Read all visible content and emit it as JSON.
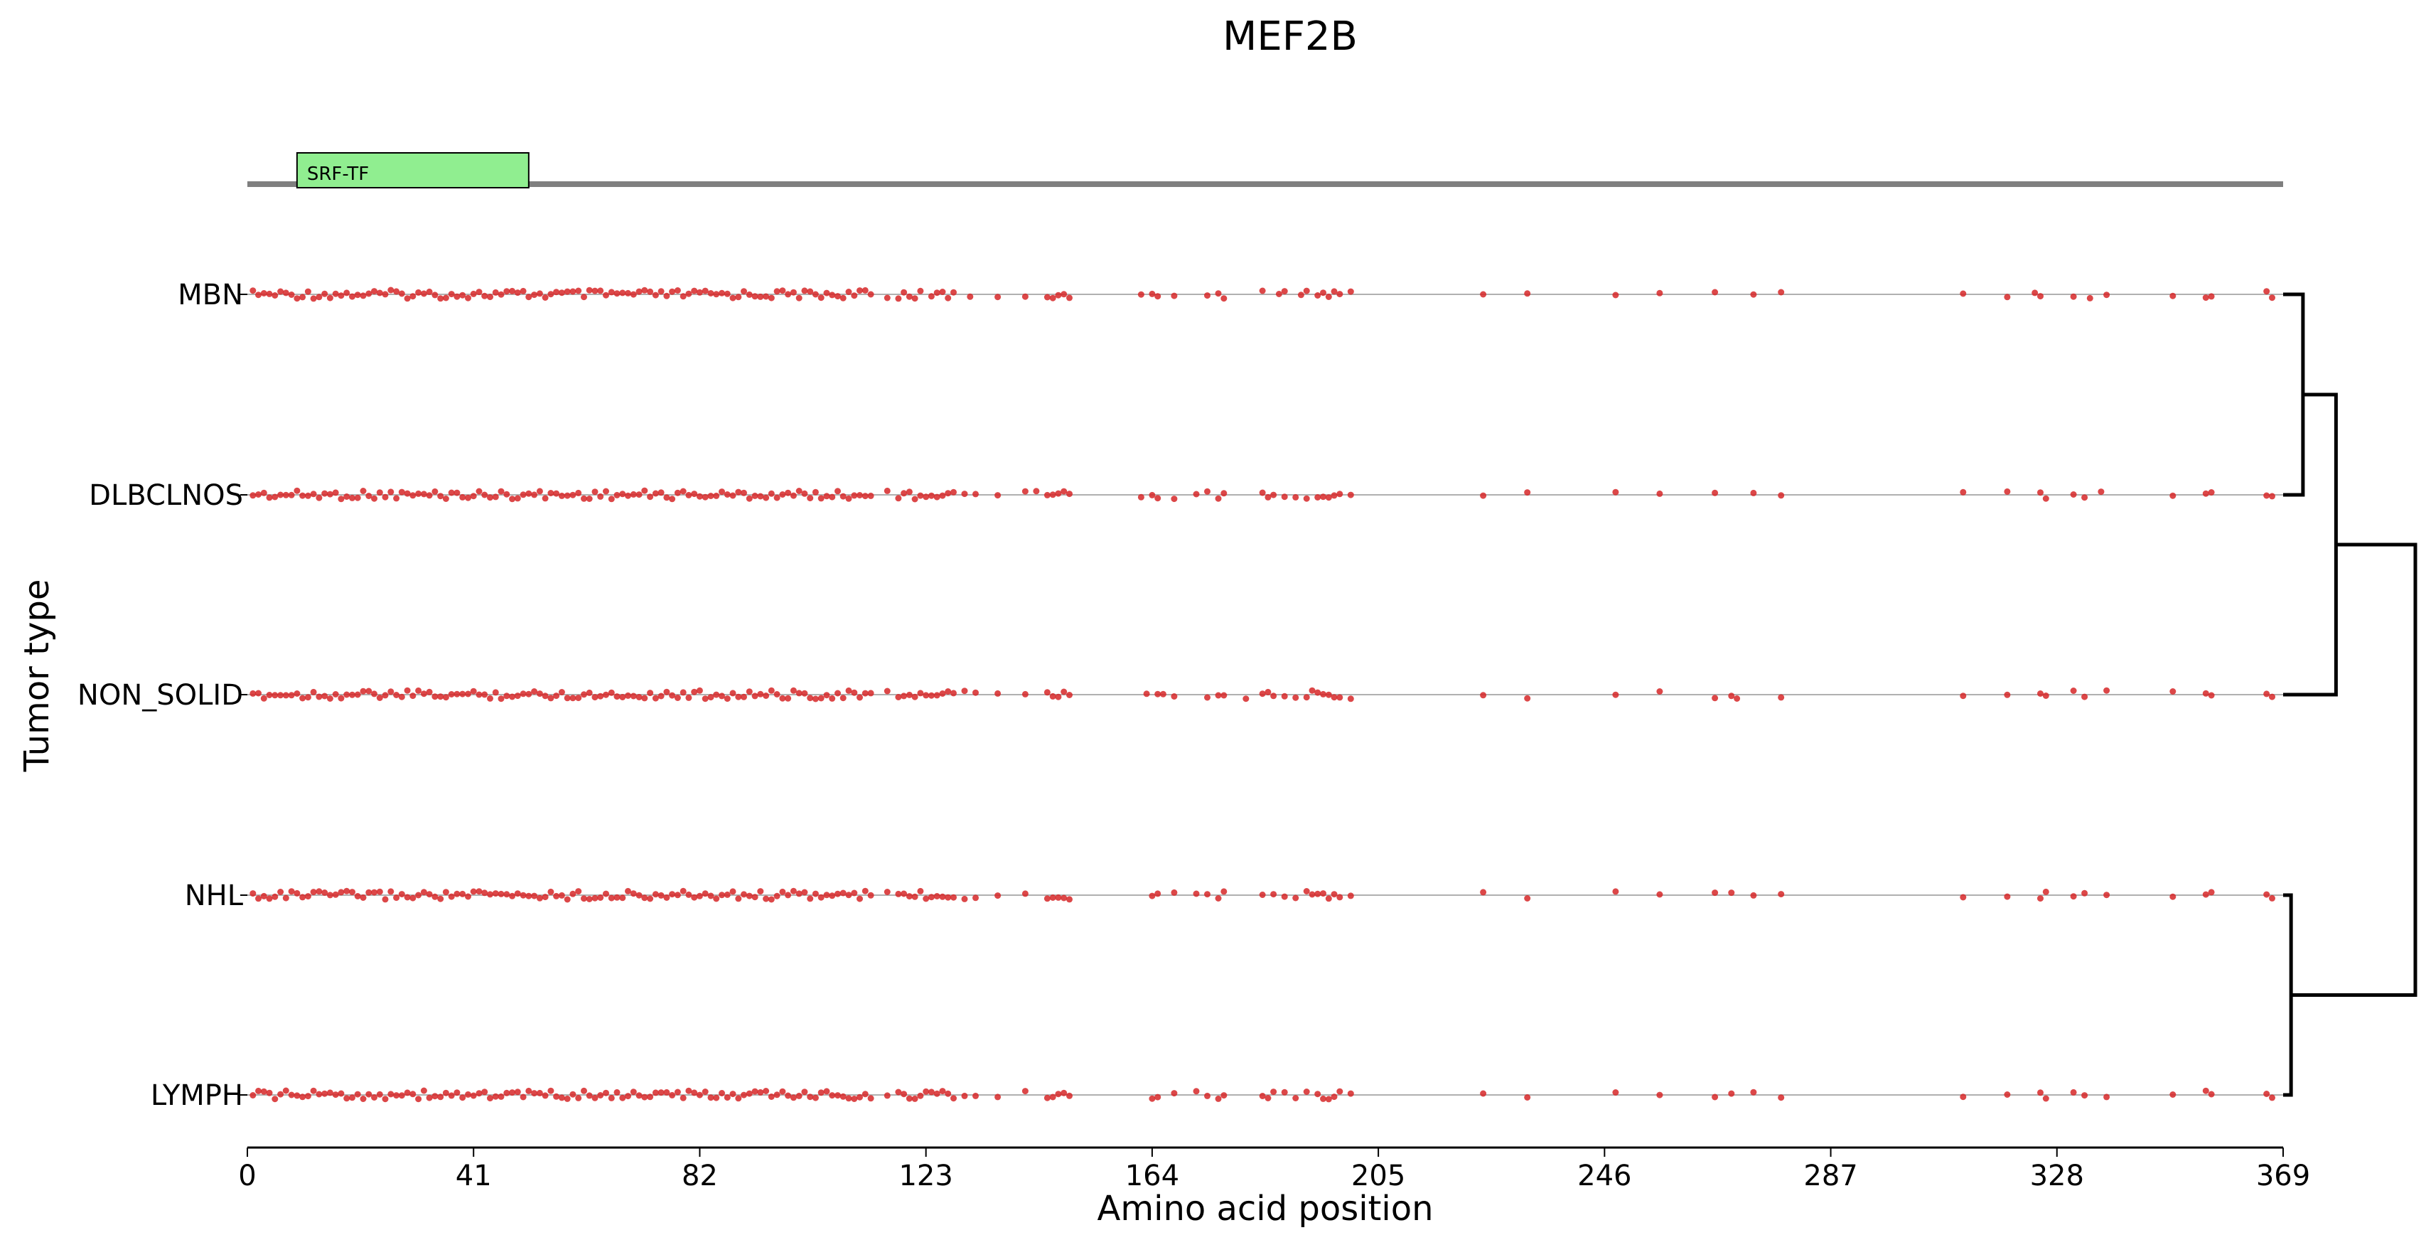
{
  "chart_data": {
    "type": "scatter",
    "title": "MEF2B",
    "xlabel": "Amino acid position",
    "ylabel": "Tumor type",
    "xlim": [
      0,
      369
    ],
    "xticks": [
      "0",
      "41",
      "82",
      "123",
      "164",
      "205",
      "246",
      "287",
      "328",
      "369"
    ],
    "protein_length": 369,
    "domains": [
      {
        "name": "SRF-TF",
        "start": 9,
        "end": 51,
        "color": "#90ee90"
      }
    ],
    "categories": [
      "MBN",
      "DLBCLNOS",
      "NON_SOLID",
      "NHL",
      "LYMPH"
    ],
    "mutation_color": "#d62728",
    "dendrogram": {
      "merges": [
        {
          "left": "MBN",
          "right": "DLBCLNOS",
          "height": 0.15
        },
        {
          "left": "MBN+DLBCLNOS",
          "right": "NON_SOLID",
          "height": 0.4
        },
        {
          "left": "NHL",
          "right": "LYMPH",
          "height": 0.06
        },
        {
          "left": "MBN+DLBCLNOS+NON_SOLID",
          "right": "NHL+LYMPH",
          "height": 1.0
        }
      ]
    },
    "series": [
      {
        "name": "MBN",
        "positions": [
          1,
          2,
          3,
          4,
          5,
          6,
          7,
          8,
          9,
          10,
          11,
          12,
          13,
          14,
          15,
          16,
          17,
          18,
          19,
          20,
          21,
          22,
          23,
          24,
          25,
          26,
          27,
          28,
          29,
          30,
          31,
          32,
          33,
          34,
          35,
          36,
          37,
          38,
          39,
          40,
          41,
          42,
          43,
          44,
          45,
          46,
          47,
          48,
          49,
          50,
          51,
          52,
          53,
          54,
          55,
          56,
          57,
          58,
          59,
          60,
          61,
          62,
          63,
          64,
          65,
          66,
          67,
          68,
          69,
          70,
          71,
          72,
          73,
          74,
          75,
          76,
          77,
          78,
          79,
          80,
          81,
          82,
          83,
          84,
          85,
          86,
          87,
          88,
          89,
          90,
          91,
          92,
          93,
          94,
          95,
          96,
          97,
          98,
          99,
          100,
          101,
          102,
          103,
          104,
          105,
          106,
          107,
          108,
          109,
          110,
          111,
          112,
          113,
          116,
          118,
          119,
          120,
          121,
          122,
          124,
          125,
          126,
          127,
          128,
          131,
          136,
          141,
          145,
          146,
          147,
          148,
          149,
          162,
          164,
          165,
          168,
          174,
          176,
          177,
          184,
          187,
          188,
          191,
          192,
          194,
          195,
          196,
          197,
          198,
          200,
          224,
          232,
          248,
          256,
          266,
          273,
          278,
          311,
          319,
          324,
          325,
          331,
          334,
          337,
          349,
          355,
          356,
          366,
          367
        ]
      },
      {
        "name": "DLBCLNOS",
        "positions": [
          1,
          2,
          3,
          4,
          5,
          6,
          7,
          8,
          9,
          10,
          11,
          12,
          13,
          14,
          15,
          16,
          17,
          18,
          19,
          20,
          21,
          22,
          23,
          24,
          25,
          26,
          27,
          28,
          29,
          30,
          31,
          32,
          33,
          34,
          35,
          36,
          37,
          38,
          39,
          40,
          41,
          42,
          43,
          44,
          45,
          46,
          47,
          48,
          49,
          50,
          51,
          52,
          53,
          54,
          55,
          56,
          57,
          58,
          59,
          60,
          61,
          62,
          63,
          64,
          65,
          66,
          67,
          68,
          69,
          70,
          71,
          72,
          73,
          74,
          75,
          76,
          77,
          78,
          79,
          80,
          81,
          82,
          83,
          84,
          85,
          86,
          87,
          88,
          89,
          90,
          91,
          92,
          93,
          94,
          95,
          96,
          97,
          98,
          99,
          100,
          101,
          102,
          103,
          104,
          105,
          106,
          107,
          108,
          109,
          110,
          111,
          112,
          113,
          116,
          118,
          119,
          120,
          121,
          122,
          123,
          124,
          125,
          126,
          127,
          128,
          130,
          132,
          136,
          141,
          143,
          145,
          146,
          147,
          148,
          149,
          162,
          164,
          165,
          168,
          172,
          174,
          176,
          177,
          184,
          185,
          186,
          188,
          190,
          192,
          194,
          195,
          196,
          197,
          198,
          200,
          224,
          232,
          248,
          256,
          266,
          273,
          278,
          311,
          319,
          325,
          326,
          331,
          333,
          336,
          349,
          355,
          356,
          366,
          367
        ]
      },
      {
        "name": "NON_SOLID",
        "positions": [
          1,
          2,
          3,
          4,
          5,
          6,
          7,
          8,
          9,
          10,
          11,
          12,
          13,
          14,
          15,
          16,
          17,
          18,
          19,
          20,
          21,
          22,
          23,
          24,
          25,
          26,
          27,
          28,
          29,
          30,
          31,
          32,
          33,
          34,
          35,
          36,
          37,
          38,
          39,
          40,
          41,
          42,
          43,
          44,
          45,
          46,
          47,
          48,
          49,
          50,
          51,
          52,
          53,
          54,
          55,
          56,
          57,
          58,
          59,
          60,
          61,
          62,
          63,
          64,
          65,
          66,
          67,
          68,
          69,
          70,
          71,
          72,
          73,
          74,
          75,
          76,
          77,
          78,
          79,
          80,
          81,
          82,
          83,
          84,
          85,
          86,
          87,
          88,
          89,
          90,
          91,
          92,
          93,
          94,
          95,
          96,
          97,
          98,
          99,
          100,
          101,
          102,
          103,
          104,
          105,
          106,
          107,
          108,
          109,
          110,
          111,
          112,
          113,
          116,
          118,
          119,
          120,
          121,
          122,
          123,
          124,
          125,
          126,
          127,
          128,
          130,
          132,
          136,
          141,
          145,
          146,
          147,
          148,
          149,
          163,
          165,
          166,
          168,
          174,
          176,
          177,
          181,
          184,
          185,
          186,
          188,
          190,
          192,
          193,
          194,
          195,
          196,
          197,
          198,
          200,
          224,
          232,
          248,
          256,
          266,
          269,
          270,
          278,
          311,
          319,
          325,
          326,
          331,
          333,
          337,
          349,
          355,
          356,
          366,
          367
        ]
      },
      {
        "name": "NHL",
        "positions": [
          1,
          2,
          3,
          4,
          5,
          6,
          7,
          8,
          9,
          10,
          11,
          12,
          13,
          14,
          15,
          16,
          17,
          18,
          19,
          20,
          21,
          22,
          23,
          24,
          25,
          26,
          27,
          28,
          29,
          30,
          31,
          32,
          33,
          34,
          35,
          36,
          37,
          38,
          39,
          40,
          41,
          42,
          43,
          44,
          45,
          46,
          47,
          48,
          49,
          50,
          51,
          52,
          53,
          54,
          55,
          56,
          57,
          58,
          59,
          60,
          61,
          62,
          63,
          64,
          65,
          66,
          67,
          68,
          69,
          70,
          71,
          72,
          73,
          74,
          75,
          76,
          77,
          78,
          79,
          80,
          81,
          82,
          83,
          84,
          85,
          86,
          87,
          88,
          89,
          90,
          91,
          92,
          93,
          94,
          95,
          96,
          97,
          98,
          99,
          100,
          101,
          102,
          103,
          104,
          105,
          106,
          107,
          108,
          109,
          110,
          111,
          112,
          113,
          116,
          118,
          119,
          120,
          121,
          122,
          123,
          124,
          125,
          126,
          127,
          128,
          130,
          132,
          136,
          141,
          145,
          146,
          147,
          148,
          149,
          164,
          165,
          168,
          172,
          174,
          176,
          177,
          184,
          186,
          188,
          190,
          192,
          193,
          194,
          195,
          196,
          197,
          198,
          200,
          224,
          232,
          248,
          256,
          266,
          269,
          273,
          278,
          311,
          319,
          325,
          326,
          331,
          333,
          337,
          349,
          355,
          356,
          366,
          367
        ]
      },
      {
        "name": "LYMPH",
        "positions": [
          1,
          2,
          3,
          4,
          5,
          6,
          7,
          8,
          9,
          10,
          11,
          12,
          13,
          14,
          15,
          16,
          17,
          18,
          19,
          20,
          21,
          22,
          23,
          24,
          25,
          26,
          27,
          28,
          29,
          30,
          31,
          32,
          33,
          34,
          35,
          36,
          37,
          38,
          39,
          40,
          41,
          42,
          43,
          44,
          45,
          46,
          47,
          48,
          49,
          50,
          51,
          52,
          53,
          54,
          55,
          56,
          57,
          58,
          59,
          60,
          61,
          62,
          63,
          64,
          65,
          66,
          67,
          68,
          69,
          70,
          71,
          72,
          73,
          74,
          75,
          76,
          77,
          78,
          79,
          80,
          81,
          82,
          83,
          84,
          85,
          86,
          87,
          88,
          89,
          90,
          91,
          92,
          93,
          94,
          95,
          96,
          97,
          98,
          99,
          100,
          101,
          102,
          103,
          104,
          105,
          106,
          107,
          108,
          109,
          110,
          111,
          112,
          113,
          116,
          118,
          119,
          120,
          121,
          122,
          123,
          124,
          125,
          126,
          127,
          128,
          130,
          132,
          136,
          141,
          145,
          146,
          147,
          148,
          149,
          164,
          165,
          168,
          172,
          174,
          176,
          177,
          184,
          185,
          186,
          188,
          190,
          192,
          194,
          195,
          196,
          197,
          198,
          200,
          224,
          232,
          248,
          256,
          266,
          269,
          273,
          278,
          311,
          319,
          325,
          326,
          331,
          333,
          337,
          349,
          355,
          356,
          366,
          367
        ]
      }
    ]
  }
}
